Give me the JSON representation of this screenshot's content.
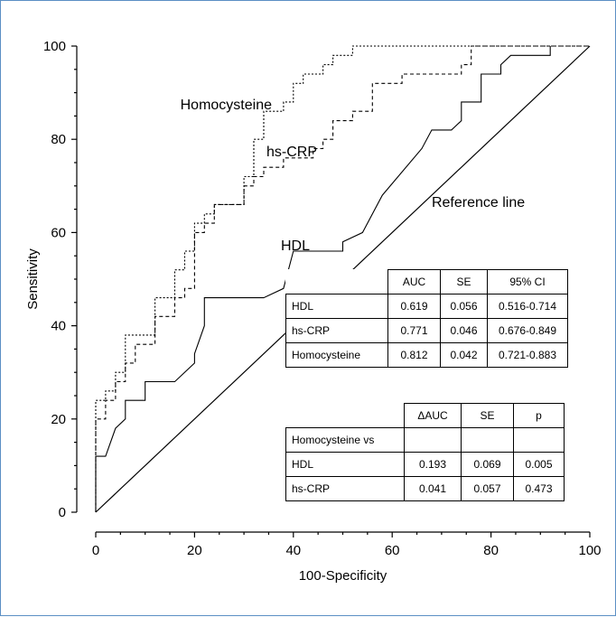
{
  "chart_data": {
    "type": "line",
    "xlabel": "100-Specificity",
    "ylabel": "Sensitivity",
    "xlim": [
      0,
      100
    ],
    "ylim": [
      0,
      100
    ],
    "x_ticks": [
      "0",
      "20",
      "40",
      "60",
      "80",
      "100"
    ],
    "y_ticks": [
      "0",
      "20",
      "40",
      "60",
      "80",
      "100"
    ],
    "grid": false,
    "reference_label": "Reference line",
    "series": [
      {
        "name": "Homocysteine",
        "style": "dotted",
        "label_x": 34,
        "label_y": 86,
        "points": [
          [
            0,
            0
          ],
          [
            0,
            24
          ],
          [
            2,
            24
          ],
          [
            2,
            26
          ],
          [
            4,
            26
          ],
          [
            4,
            30
          ],
          [
            6,
            30
          ],
          [
            6,
            38
          ],
          [
            12,
            38
          ],
          [
            12,
            46
          ],
          [
            16,
            46
          ],
          [
            16,
            52
          ],
          [
            18,
            52
          ],
          [
            18,
            56
          ],
          [
            20,
            56
          ],
          [
            20,
            62
          ],
          [
            22,
            62
          ],
          [
            22,
            64
          ],
          [
            24,
            64
          ],
          [
            24,
            66
          ],
          [
            30,
            66
          ],
          [
            30,
            72
          ],
          [
            32,
            72
          ],
          [
            32,
            80
          ],
          [
            34,
            80
          ],
          [
            34,
            86
          ],
          [
            38,
            86
          ],
          [
            38,
            88
          ],
          [
            40,
            88
          ],
          [
            40,
            92
          ],
          [
            42,
            92
          ],
          [
            42,
            94
          ],
          [
            46,
            94
          ],
          [
            46,
            96
          ],
          [
            48,
            96
          ],
          [
            48,
            98
          ],
          [
            52,
            98
          ],
          [
            52,
            100
          ],
          [
            100,
            100
          ]
        ]
      },
      {
        "name": "hs-CRP",
        "style": "dashed",
        "label_x": 44,
        "label_y": 79,
        "points": [
          [
            0,
            0
          ],
          [
            0,
            20
          ],
          [
            2,
            20
          ],
          [
            2,
            24
          ],
          [
            4,
            24
          ],
          [
            4,
            28
          ],
          [
            6,
            28
          ],
          [
            6,
            32
          ],
          [
            8,
            32
          ],
          [
            8,
            36
          ],
          [
            12,
            36
          ],
          [
            12,
            42
          ],
          [
            16,
            42
          ],
          [
            16,
            46
          ],
          [
            18,
            46
          ],
          [
            18,
            48
          ],
          [
            20,
            48
          ],
          [
            20,
            60
          ],
          [
            22,
            60
          ],
          [
            22,
            62
          ],
          [
            24,
            62
          ],
          [
            24,
            66
          ],
          [
            30,
            66
          ],
          [
            30,
            70
          ],
          [
            32,
            70
          ],
          [
            32,
            72
          ],
          [
            34,
            72
          ],
          [
            34,
            74
          ],
          [
            38,
            74
          ],
          [
            38,
            76
          ],
          [
            44,
            76
          ],
          [
            44,
            78
          ],
          [
            46,
            78
          ],
          [
            46,
            80
          ],
          [
            48,
            80
          ],
          [
            48,
            84
          ],
          [
            52,
            84
          ],
          [
            52,
            86
          ],
          [
            56,
            86
          ],
          [
            56,
            92
          ],
          [
            62,
            92
          ],
          [
            62,
            94
          ],
          [
            74,
            94
          ],
          [
            74,
            96
          ],
          [
            76,
            96
          ],
          [
            76,
            100
          ],
          [
            92,
            100
          ],
          [
            92,
            100
          ],
          [
            100,
            100
          ]
        ]
      },
      {
        "name": "HDL",
        "style": "solid",
        "label_x": 41,
        "label_y": 63,
        "points": [
          [
            0,
            0
          ],
          [
            0,
            12
          ],
          [
            2,
            12
          ],
          [
            4,
            18
          ],
          [
            6,
            20
          ],
          [
            6,
            24
          ],
          [
            10,
            24
          ],
          [
            10,
            28
          ],
          [
            16,
            28
          ],
          [
            20,
            32
          ],
          [
            20,
            34
          ],
          [
            22,
            40
          ],
          [
            22,
            46
          ],
          [
            34,
            46
          ],
          [
            38,
            48
          ],
          [
            40,
            56
          ],
          [
            50,
            56
          ],
          [
            50,
            58
          ],
          [
            54,
            60
          ],
          [
            58,
            68
          ],
          [
            66,
            78
          ],
          [
            68,
            82
          ],
          [
            72,
            82
          ],
          [
            74,
            84
          ],
          [
            74,
            88
          ],
          [
            78,
            88
          ],
          [
            78,
            94
          ],
          [
            82,
            94
          ],
          [
            82,
            96
          ],
          [
            84,
            98
          ],
          [
            92,
            98
          ],
          [
            92,
            100
          ]
        ]
      }
    ],
    "auc_table": {
      "headers": [
        "",
        "AUC",
        "SE",
        "95% CI"
      ],
      "rows": [
        [
          "HDL",
          "0.619",
          "0.056",
          "0.516-0.714"
        ],
        [
          "hs-CRP",
          "0.771",
          "0.046",
          "0.676-0.849"
        ],
        [
          "Homocysteine",
          "0.812",
          "0.042",
          "0.721-0.883"
        ]
      ]
    },
    "comparison_table": {
      "headers": [
        "",
        "ΔAUC",
        "SE",
        "p"
      ],
      "group_label": "Homocysteine vs",
      "rows": [
        [
          "HDL",
          "0.193",
          "0.069",
          "0.005"
        ],
        [
          "hs-CRP",
          "0.041",
          "0.057",
          "0.473"
        ]
      ]
    }
  }
}
